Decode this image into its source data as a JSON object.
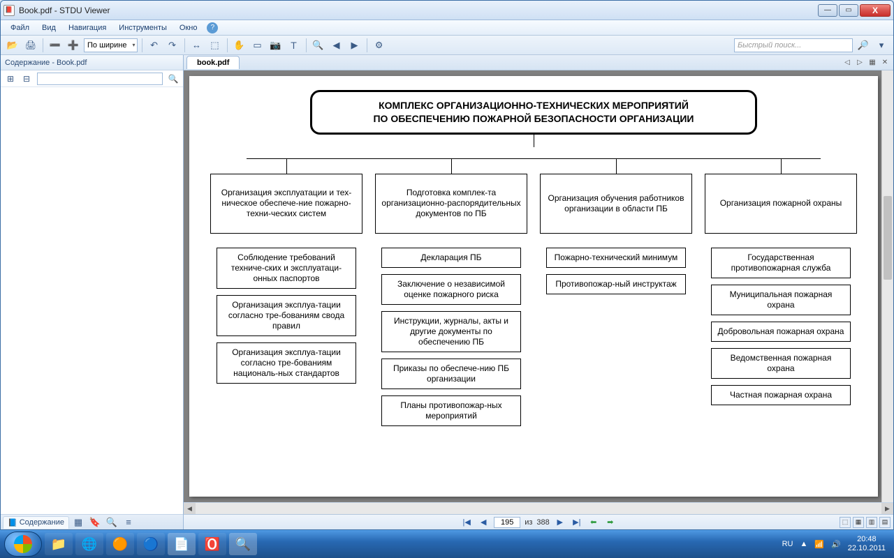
{
  "window": {
    "title": "Book.pdf - STDU Viewer",
    "buttons": {
      "min": "—",
      "max": "▭",
      "close": "X"
    }
  },
  "menu": {
    "file": "Файл",
    "view": "Вид",
    "nav": "Навигация",
    "tools": "Инструменты",
    "window": "Окно",
    "help": "?"
  },
  "toolbar": {
    "zoom_label": "По ширине",
    "search_placeholder": "Быстрый поиск..."
  },
  "sidebar": {
    "header": "Содержание - Book.pdf",
    "tab_contents": "Содержание"
  },
  "doc": {
    "tab": "book.pdf"
  },
  "pagenav": {
    "current": "195",
    "sep": "из",
    "total": "388"
  },
  "diagram": {
    "title_l1": "КОМПЛЕКС ОРГАНИЗАЦИОННО-ТЕХНИЧЕСКИХ МЕРОПРИЯТИЙ",
    "title_l2": "ПО ОБЕСПЕЧЕНИЮ ПОЖАРНОЙ БЕЗОПАСНОСТИ ОРГАНИЗАЦИИ",
    "cols": [
      {
        "main": "Организация эксплуатации и тех-ническое обеспече-ние пожарно-техни-ческих систем",
        "subs": [
          "Соблюдение требований техниче-ских и эксплуатаци-онных паспортов",
          "Организация эксплуа-тации согласно тре-бованиям свода правил",
          "Организация эксплуа-тации согласно тре-бованиям националь-ных стандартов"
        ]
      },
      {
        "main": "Подготовка комплек-та организационно-распорядительных документов по ПБ",
        "subs": [
          "Декларация ПБ",
          "Заключение о независимой оценке пожарного риска",
          "Инструкции, журналы, акты и другие документы по обеспечению ПБ",
          "Приказы по обеспече-нию ПБ организации",
          "Планы противопожар-ных мероприятий"
        ]
      },
      {
        "main": "Организация обучения работников организации в области ПБ",
        "subs": [
          "Пожарно-технический минимум",
          "Противопожар-ный инструктаж"
        ]
      },
      {
        "main": "Организация пожарной охраны",
        "subs": [
          "Государственная противопожарная служба",
          "Муниципальная пожарная охрана",
          "Добровольная пожарная охрана",
          "Ведомственная пожарная охрана",
          "Частная пожарная охрана"
        ]
      }
    ]
  },
  "tray": {
    "lang": "RU",
    "time": "20:48",
    "date": "22.10.2011"
  }
}
